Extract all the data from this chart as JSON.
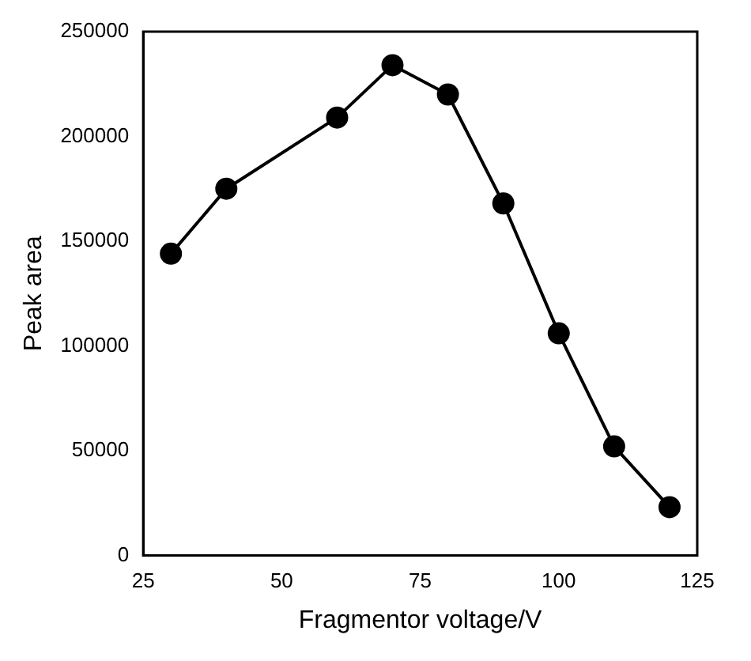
{
  "chart_data": {
    "type": "line",
    "xlabel": "Fragmentor voltage/V",
    "ylabel": "Peak area",
    "x": [
      30,
      40,
      60,
      70,
      80,
      90,
      100,
      110,
      120
    ],
    "series": [
      {
        "color": "#000000",
        "values": [
          144000,
          175000,
          209000,
          234000,
          220000,
          168000,
          106000,
          52000,
          23000
        ]
      }
    ],
    "xlim": [
      25,
      125
    ],
    "xticks": [
      25,
      50,
      75,
      100,
      125
    ],
    "ylim": [
      0,
      250000
    ],
    "yticks": [
      0,
      50000,
      100000,
      150000,
      200000,
      250000
    ],
    "grid": false,
    "legend": false,
    "marker": "circle",
    "line_style": "solid"
  }
}
